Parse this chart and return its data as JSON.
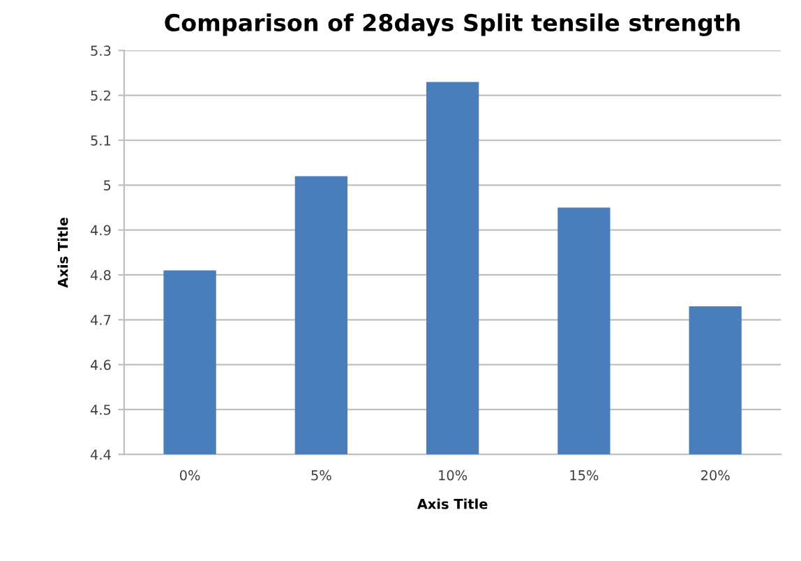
{
  "chart_data": {
    "type": "bar",
    "title": "Comparison of 28days Split tensile strength",
    "xlabel": "Axis Title",
    "ylabel": "Axis Title",
    "categories": [
      "0%",
      "5%",
      "10%",
      "15%",
      "20%"
    ],
    "values": [
      4.81,
      5.02,
      5.23,
      4.95,
      4.73
    ],
    "color": "#4a7ebb",
    "ylim": [
      4.4,
      5.3
    ],
    "yticks": [
      {
        "value": 4.4,
        "label": "4.4"
      },
      {
        "value": 4.5,
        "label": "4.5"
      },
      {
        "value": 4.6,
        "label": "4.6"
      },
      {
        "value": 4.7,
        "label": "4.7"
      },
      {
        "value": 4.8,
        "label": "4.8"
      },
      {
        "value": 4.9,
        "label": "4.9"
      },
      5,
      {
        "value": 5.1,
        "label": "5.1"
      },
      {
        "value": 5.2,
        "label": "5.2"
      },
      {
        "value": 5.3,
        "label": "5.3"
      }
    ],
    "grid": "y",
    "legend": false
  }
}
